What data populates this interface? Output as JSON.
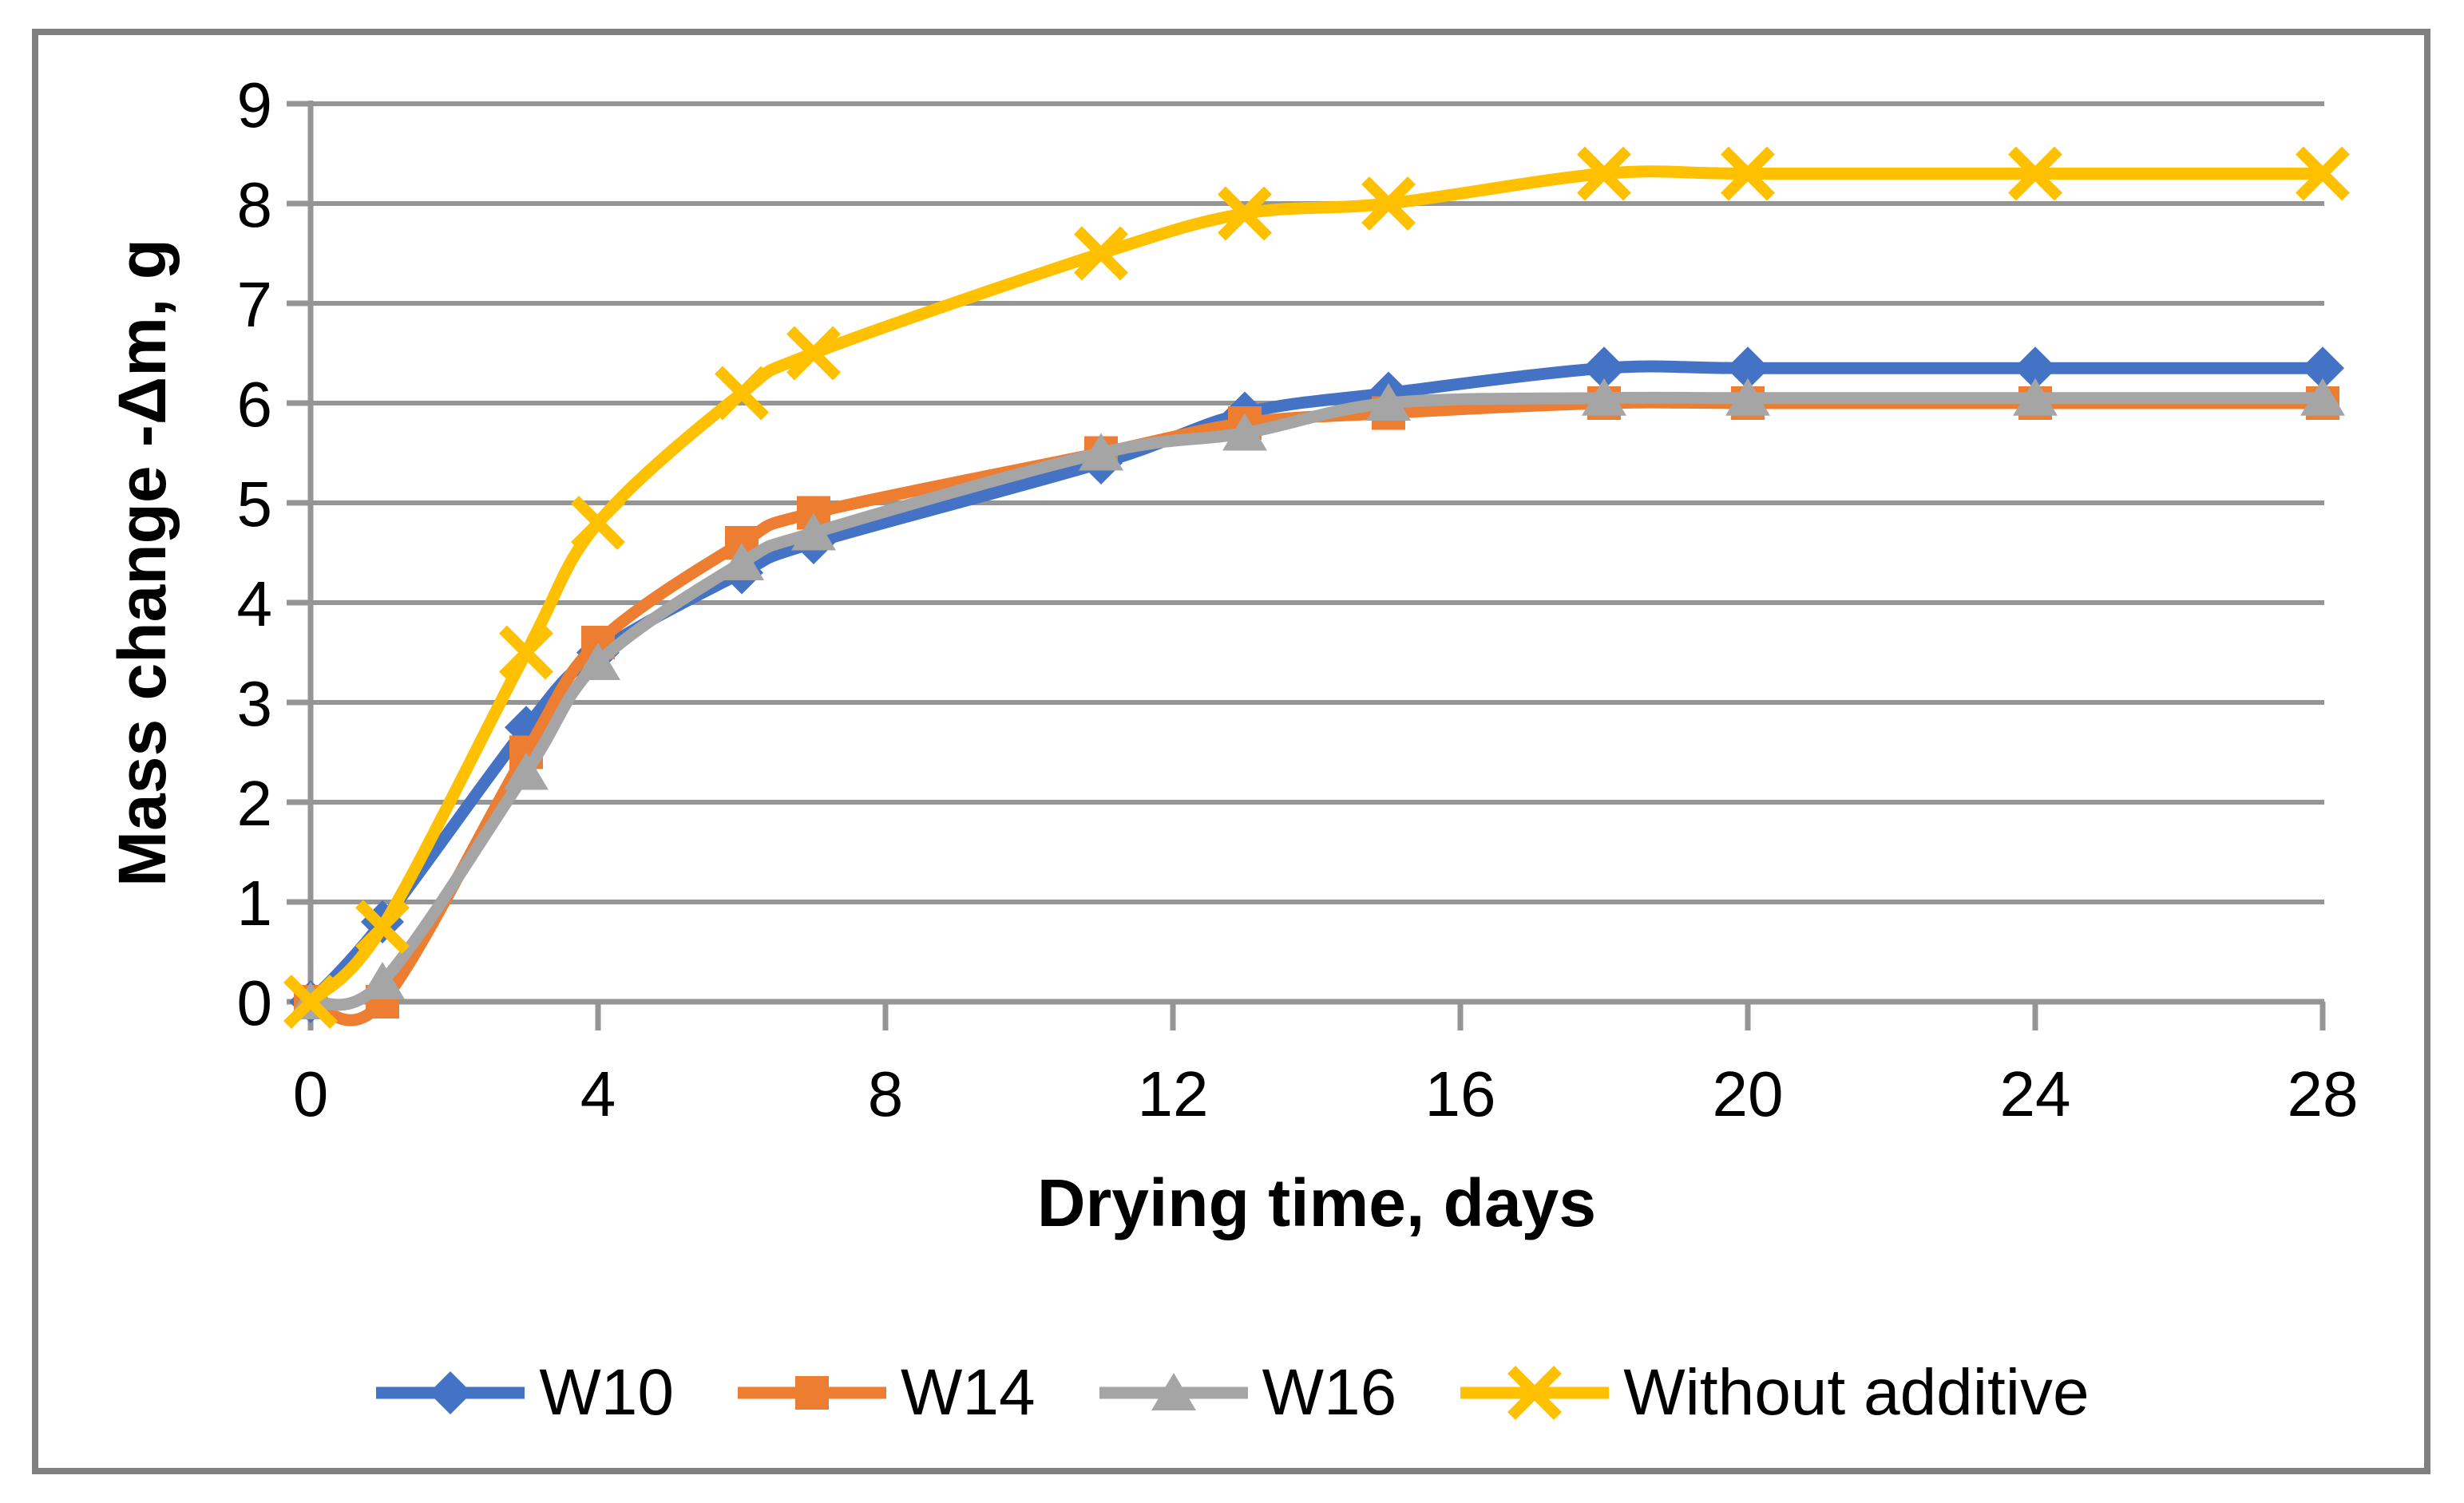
{
  "figure": {
    "background": "#FFFFFF",
    "border_color": "#808080",
    "text_color": "#000000"
  },
  "chart_data": {
    "type": "line",
    "title": "",
    "xlabel": "Drying time, days",
    "ylabel": "Mass change -Δm, g",
    "x": [
      0,
      1,
      3,
      4,
      6,
      7,
      11,
      13,
      15,
      18,
      20,
      24,
      28
    ],
    "series": [
      {
        "name": "W10",
        "color": "#4472C4",
        "marker": "diamond",
        "values": [
          0,
          0.8,
          2.75,
          3.5,
          4.3,
          4.6,
          5.4,
          5.9,
          6.1,
          6.35,
          6.35,
          6.35,
          6.35
        ]
      },
      {
        "name": "W14",
        "color": "#ED7D31",
        "marker": "square",
        "values": [
          0,
          0,
          2.5,
          3.6,
          4.6,
          4.9,
          5.5,
          5.8,
          5.9,
          6.0,
          6.0,
          6.0,
          6.0
        ]
      },
      {
        "name": "W16",
        "color": "#A5A5A5",
        "marker": "triangle",
        "values": [
          0,
          0.2,
          2.3,
          3.4,
          4.4,
          4.7,
          5.5,
          5.7,
          6.0,
          6.05,
          6.05,
          6.05,
          6.05
        ]
      },
      {
        "name": "Without additive",
        "color": "#FFC000",
        "marker": "x",
        "values": [
          0,
          0.75,
          3.5,
          4.8,
          6.1,
          6.5,
          7.5,
          7.9,
          8.0,
          8.3,
          8.3,
          8.3,
          8.3
        ]
      }
    ],
    "xlim": [
      0,
      28
    ],
    "ylim": [
      0,
      9
    ],
    "x_ticks": [
      0,
      4,
      8,
      12,
      16,
      20,
      24,
      28
    ],
    "y_ticks": [
      0,
      1,
      2,
      3,
      4,
      5,
      6,
      7,
      8,
      9
    ],
    "grid": true,
    "grid_color": "#959595",
    "axis_color": "#959595",
    "legend_position": "bottom",
    "line_smooth": true
  }
}
